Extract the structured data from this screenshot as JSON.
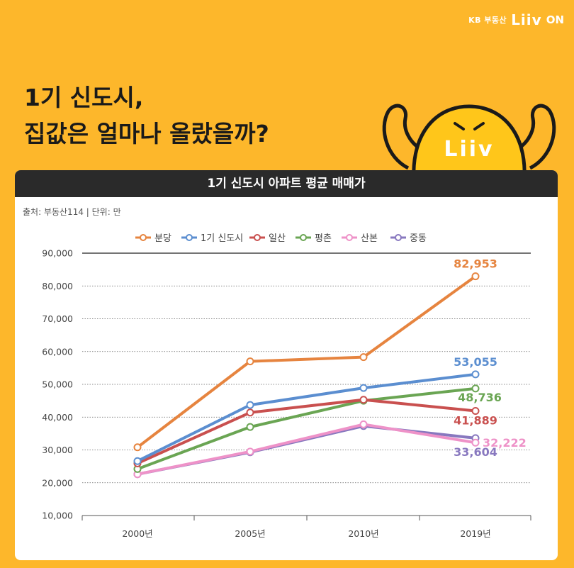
{
  "brand": {
    "kb": "KB 부동산",
    "liiv": "Liiv",
    "on": "ON"
  },
  "headline": {
    "line1": "1기 신도시,",
    "line2": "집값은 얼마나 올랐을까?"
  },
  "mascot": {
    "text": "Liiv"
  },
  "card": {
    "title": "1기 신도시 아파트 평균 매매가",
    "source": "출처: 부동산114 | 단위: 만"
  },
  "chart_data": {
    "type": "line",
    "title": "1기 신도시 아파트 평균 매매가",
    "categories": [
      "2000년",
      "2005년",
      "2010년",
      "2019년"
    ],
    "ylim": [
      10000,
      90000
    ],
    "yticks": [
      10000,
      20000,
      30000,
      40000,
      50000,
      60000,
      70000,
      80000,
      90000
    ],
    "ytick_labels": [
      "10,000",
      "20,000",
      "30,000",
      "40,000",
      "50,000",
      "60,000",
      "70,000",
      "80,000",
      "90,000"
    ],
    "grid": true,
    "legend_position": "top",
    "series": [
      {
        "name": "분당",
        "color": "#E6843F",
        "values": [
          30800,
          57000,
          58300,
          82953
        ],
        "end_label": "82,953"
      },
      {
        "name": "1기 신도시",
        "color": "#5B8ED0",
        "values": [
          26600,
          43700,
          48900,
          53055
        ],
        "end_label": "53,055"
      },
      {
        "name": "일산",
        "color": "#C9504F",
        "values": [
          25900,
          41400,
          45300,
          41889
        ],
        "end_label": "41,889"
      },
      {
        "name": "평촌",
        "color": "#6AA553",
        "values": [
          24200,
          37000,
          45000,
          48736
        ],
        "end_label": "48,736"
      },
      {
        "name": "산본",
        "color": "#EE92C8",
        "values": [
          22600,
          29500,
          37800,
          32222
        ],
        "end_label": "32,222"
      },
      {
        "name": "중동",
        "color": "#8878BF",
        "values": [
          22600,
          29300,
          37300,
          33604
        ],
        "end_label": "33,604"
      }
    ]
  }
}
